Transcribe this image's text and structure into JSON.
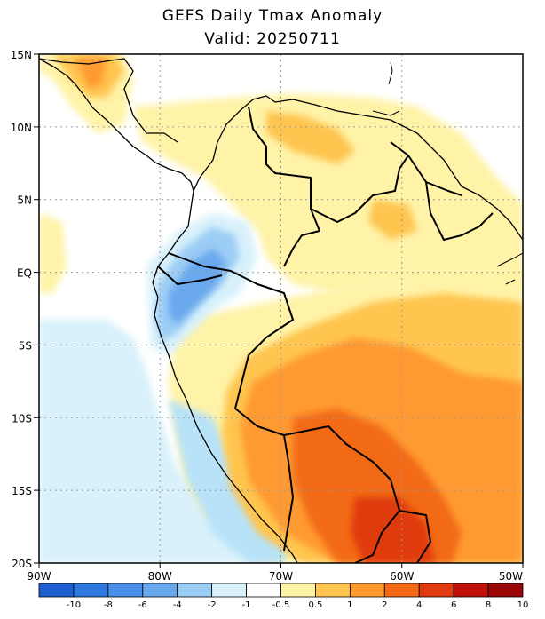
{
  "title": "GEFS Daily Tmax Anomaly",
  "subtitle": "Valid: 20250711",
  "map": {
    "lon_range": [
      -90,
      -50
    ],
    "lat_range": [
      -20,
      15
    ],
    "x_ticks": [
      {
        "lon": -90,
        "label": "90W"
      },
      {
        "lon": -80,
        "label": "80W"
      },
      {
        "lon": -70,
        "label": "70W"
      },
      {
        "lon": -60,
        "label": "60W"
      },
      {
        "lon": -50,
        "label": "50W"
      }
    ],
    "y_ticks": [
      {
        "lat": 15,
        "label": "15N"
      },
      {
        "lat": 10,
        "label": "10N"
      },
      {
        "lat": 5,
        "label": "5N"
      },
      {
        "lat": 0,
        "label": "EQ"
      },
      {
        "lat": -5,
        "label": "5S"
      },
      {
        "lat": -10,
        "label": "10S"
      },
      {
        "lat": -15,
        "label": "15S"
      },
      {
        "lat": -20,
        "label": "20S"
      }
    ],
    "grid": "dotted"
  },
  "colorbar": {
    "colors": [
      "#1e5fd0",
      "#2e78e0",
      "#4a90e8",
      "#6aa8ee",
      "#9ccdf5",
      "#d8f1fb",
      "#ffffff",
      "#fff3a8",
      "#ffc550",
      "#ff9a30",
      "#f26a18",
      "#e03a10",
      "#c0100a",
      "#9a0606"
    ],
    "labels": [
      "-10",
      "-8",
      "-6",
      "-4",
      "-2",
      "-1",
      "-0.5",
      "0.5",
      "1",
      "2",
      "4",
      "6",
      "8",
      "10"
    ]
  }
}
